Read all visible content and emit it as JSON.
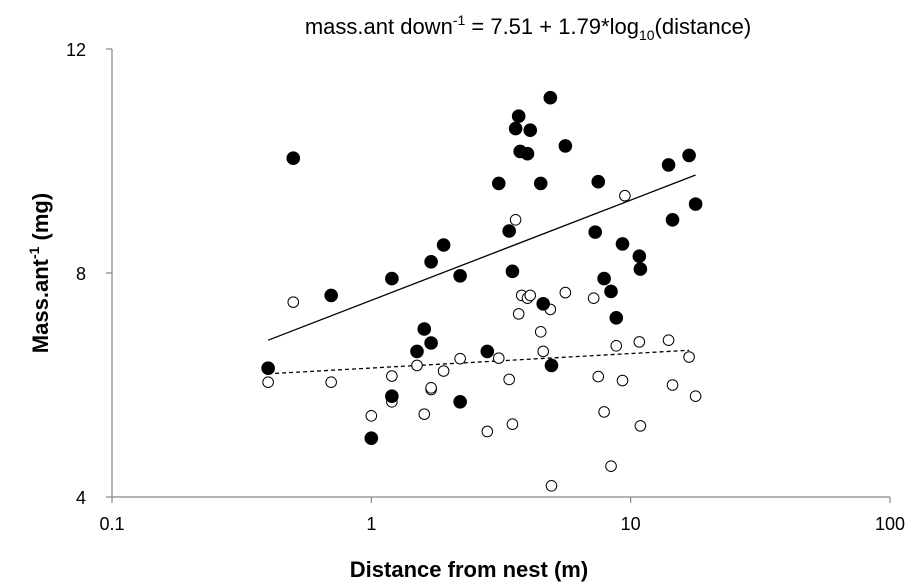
{
  "chart_data": {
    "type": "scatter",
    "title": {
      "main": "mass.ant down",
      "sup": "-1",
      "middle": " = 7.51 + 1.79*log",
      "sub": "10",
      "tail": "(distance)"
    },
    "xlabel": "Distance from nest (m)",
    "ylabel": {
      "main": "Mass.ant",
      "sup": "-1",
      "tail": " (mg)"
    },
    "x_scale": "log",
    "xlim": [
      0.1,
      100
    ],
    "ylim": [
      4,
      12
    ],
    "x_ticks": [
      0.1,
      1,
      10,
      100
    ],
    "x_tick_labels": [
      "0.1",
      "1",
      "10",
      "100"
    ],
    "y_ticks": [
      4,
      8,
      12
    ],
    "y_tick_labels": [
      "4",
      "8",
      "12"
    ],
    "grid": false,
    "series": [
      {
        "marker": "filled-circle",
        "color": "#000000",
        "x": [
          0.4,
          0.5,
          0.7,
          1.0,
          1.2,
          1.2,
          1.5,
          1.6,
          1.7,
          1.7,
          1.9,
          2.2,
          2.2,
          2.8,
          3.1,
          3.4,
          3.5,
          3.6,
          3.7,
          3.75,
          4.0,
          4.1,
          4.5,
          4.6,
          4.9,
          4.95,
          5.6,
          7.3,
          7.5,
          7.9,
          8.4,
          8.8,
          9.3,
          10.8,
          10.9,
          14.0,
          14.5,
          16.8,
          17.8
        ],
        "y": [
          6.3,
          10.05,
          7.6,
          5.05,
          7.9,
          5.8,
          6.6,
          7.0,
          8.2,
          6.75,
          8.5,
          7.95,
          5.7,
          6.6,
          9.6,
          8.75,
          8.03,
          10.58,
          10.8,
          10.17,
          10.13,
          10.55,
          9.6,
          7.45,
          11.13,
          6.35,
          10.27,
          8.73,
          9.63,
          7.9,
          7.67,
          7.2,
          8.52,
          8.3,
          8.07,
          9.93,
          8.95,
          10.1,
          9.23
        ]
      },
      {
        "marker": "open-circle",
        "color": "#000000",
        "x": [
          0.4,
          0.5,
          0.7,
          1.0,
          1.2,
          1.2,
          1.5,
          1.6,
          1.7,
          1.7,
          1.9,
          2.2,
          2.8,
          3.1,
          3.4,
          3.5,
          3.6,
          3.7,
          3.8,
          4.0,
          4.1,
          4.5,
          4.6,
          4.9,
          4.95,
          5.6,
          7.2,
          7.5,
          7.9,
          8.4,
          8.8,
          9.3,
          9.5,
          10.8,
          10.9,
          14.0,
          14.5,
          16.8,
          17.8
        ],
        "y": [
          6.05,
          7.48,
          6.05,
          5.45,
          6.16,
          5.7,
          6.35,
          5.48,
          5.92,
          5.95,
          6.25,
          6.47,
          5.17,
          6.48,
          6.1,
          5.3,
          8.95,
          7.27,
          7.6,
          7.55,
          7.6,
          6.95,
          6.6,
          7.35,
          4.2,
          7.65,
          7.55,
          6.15,
          5.52,
          4.55,
          6.7,
          6.08,
          9.38,
          6.77,
          5.27,
          6.8,
          6.0,
          6.5,
          5.8
        ]
      }
    ],
    "trendlines": [
      {
        "style": "solid",
        "x": [
          0.4,
          17.8
        ],
        "y": [
          6.8,
          9.75
        ]
      },
      {
        "style": "dashed",
        "x": [
          0.4,
          16.8
        ],
        "y": [
          6.2,
          6.62
        ]
      }
    ]
  }
}
